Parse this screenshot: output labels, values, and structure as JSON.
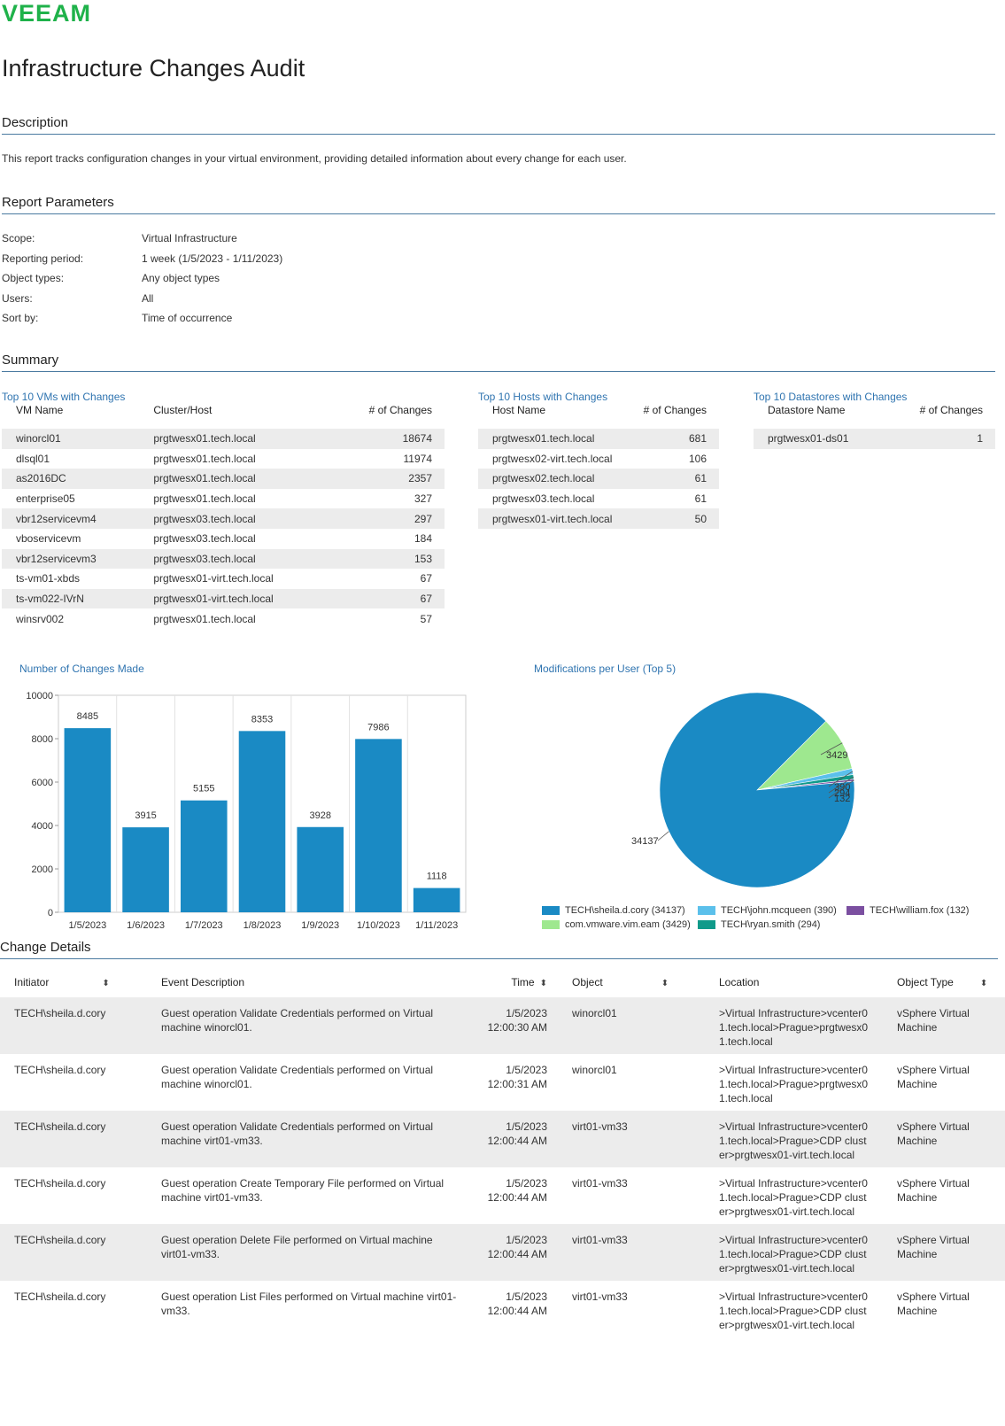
{
  "brand": "VEEAM",
  "title": "Infrastructure Changes Audit",
  "sections": {
    "description": "Description",
    "parameters": "Report Parameters",
    "summary": "Summary",
    "details": "Change Details"
  },
  "description_text": "This report tracks configuration changes in your virtual environment, providing detailed information about every change for each user.",
  "parameters": [
    {
      "label": "Scope:",
      "value": "Virtual Infrastructure"
    },
    {
      "label": "Reporting period:",
      "value": "1 week (1/5/2023 - 1/11/2023)"
    },
    {
      "label": "Object types:",
      "value": "Any object types"
    },
    {
      "label": "Users:",
      "value": "All"
    },
    {
      "label": "Sort by:",
      "value": "Time of occurrence"
    }
  ],
  "top_vms": {
    "title": "Top 10 VMs with Changes",
    "headers": [
      "VM Name",
      "Cluster/Host",
      "# of Changes"
    ],
    "rows": [
      [
        "winorcl01",
        "prgtwesx01.tech.local",
        "18674"
      ],
      [
        "dlsql01",
        "prgtwesx01.tech.local",
        "11974"
      ],
      [
        "as2016DC",
        "prgtwesx01.tech.local",
        "2357"
      ],
      [
        "enterprise05",
        "prgtwesx01.tech.local",
        "327"
      ],
      [
        "vbr12servicevm4",
        "prgtwesx03.tech.local",
        "297"
      ],
      [
        "vboservicevm",
        "prgtwesx03.tech.local",
        "184"
      ],
      [
        "vbr12servicevm3",
        "prgtwesx03.tech.local",
        "153"
      ],
      [
        "ts-vm01-xbds",
        "prgtwesx01-virt.tech.local",
        "67"
      ],
      [
        "ts-vm022-IVrN",
        "prgtwesx01-virt.tech.local",
        "67"
      ],
      [
        "winsrv002",
        "prgtwesx01.tech.local",
        "57"
      ]
    ]
  },
  "top_hosts": {
    "title": "Top 10 Hosts with Changes",
    "headers": [
      "Host Name",
      "# of Changes"
    ],
    "rows": [
      [
        "prgtwesx01.tech.local",
        "681"
      ],
      [
        "prgtwesx02-virt.tech.local",
        "106"
      ],
      [
        "prgtwesx02.tech.local",
        "61"
      ],
      [
        "prgtwesx03.tech.local",
        "61"
      ],
      [
        "prgtwesx01-virt.tech.local",
        "50"
      ]
    ]
  },
  "top_datastores": {
    "title": "Top 10 Datastores with Changes",
    "headers": [
      "Datastore Name",
      "# of Changes"
    ],
    "rows": [
      [
        "prgtwesx01-ds01",
        "1"
      ]
    ]
  },
  "chart_data": [
    {
      "type": "bar",
      "title": "Number of Changes Made",
      "categories": [
        "1/5/2023",
        "1/6/2023",
        "1/7/2023",
        "1/8/2023",
        "1/9/2023",
        "1/10/2023",
        "1/11/2023"
      ],
      "values": [
        8485,
        3915,
        5155,
        8353,
        3928,
        7986,
        1118
      ],
      "ylim": [
        0,
        10000
      ],
      "yticks": [
        0,
        2000,
        4000,
        6000,
        8000,
        10000
      ],
      "grid": true,
      "color": "#1a8ac4"
    },
    {
      "type": "pie",
      "title": "Modifications per User (Top 5)",
      "slices": [
        {
          "name": "TECH\\sheila.d.cory",
          "value": 34137,
          "color": "#1a8ac4",
          "legend": "TECH\\sheila.d.cory (34137)"
        },
        {
          "name": "com.vmware.vim.eam",
          "value": 3429,
          "color": "#9ee88f",
          "legend": "com.vmware.vim.eam (3429)"
        },
        {
          "name": "TECH\\john.mcqueen",
          "value": 390,
          "color": "#5bc0eb",
          "legend": "TECH\\john.mcqueen (390)"
        },
        {
          "name": "TECH\\ryan.smith",
          "value": 294,
          "color": "#0f9a8a",
          "legend": "TECH\\ryan.smith (294)"
        },
        {
          "name": "TECH\\william.fox",
          "value": 132,
          "color": "#7b4fa0",
          "legend": "TECH\\william.fox (132)"
        }
      ],
      "legend_placement": "bottom"
    }
  ],
  "details": {
    "headers": [
      "Initiator",
      "Event Description",
      "Time",
      "Object",
      "Location",
      "Object Type"
    ],
    "rows": [
      {
        "initiator": "TECH\\sheila.d.cory",
        "event": "Guest operation Validate Credentials performed on Virtual machine winorcl01.",
        "date": "1/5/2023",
        "time": "12:00:30 AM",
        "object": "winorcl01",
        "location": ">Virtual Infrastructure>vcenter01.tech.local>Prague>prgtwesx01.tech.local",
        "type": "vSphere Virtual Machine"
      },
      {
        "initiator": "TECH\\sheila.d.cory",
        "event": "Guest operation Validate Credentials performed on Virtual machine winorcl01.",
        "date": "1/5/2023",
        "time": "12:00:31 AM",
        "object": "winorcl01",
        "location": ">Virtual Infrastructure>vcenter01.tech.local>Prague>prgtwesx01.tech.local",
        "type": "vSphere Virtual Machine"
      },
      {
        "initiator": "TECH\\sheila.d.cory",
        "event": "Guest operation Validate Credentials performed on Virtual machine virt01-vm33.",
        "date": "1/5/2023",
        "time": "12:00:44 AM",
        "object": "virt01-vm33",
        "location": ">Virtual Infrastructure>vcenter01.tech.local>Prague>CDP cluster>prgtwesx01-virt.tech.local",
        "type": "vSphere Virtual Machine"
      },
      {
        "initiator": "TECH\\sheila.d.cory",
        "event": "Guest operation Create Temporary File performed on Virtual machine virt01-vm33.",
        "date": "1/5/2023",
        "time": "12:00:44 AM",
        "object": "virt01-vm33",
        "location": ">Virtual Infrastructure>vcenter01.tech.local>Prague>CDP cluster>prgtwesx01-virt.tech.local",
        "type": "vSphere Virtual Machine"
      },
      {
        "initiator": "TECH\\sheila.d.cory",
        "event": "Guest operation Delete File performed on Virtual machine virt01-vm33.",
        "date": "1/5/2023",
        "time": "12:00:44 AM",
        "object": "virt01-vm33",
        "location": ">Virtual Infrastructure>vcenter01.tech.local>Prague>CDP cluster>prgtwesx01-virt.tech.local",
        "type": "vSphere Virtual Machine"
      },
      {
        "initiator": "TECH\\sheila.d.cory",
        "event": "Guest operation List Files performed on Virtual machine virt01-vm33.",
        "date": "1/5/2023",
        "time": "12:00:44 AM",
        "object": "virt01-vm33",
        "location": ">Virtual Infrastructure>vcenter01.tech.local>Prague>CDP cluster>prgtwesx01-virt.tech.local",
        "type": "vSphere Virtual Machine"
      }
    ]
  }
}
